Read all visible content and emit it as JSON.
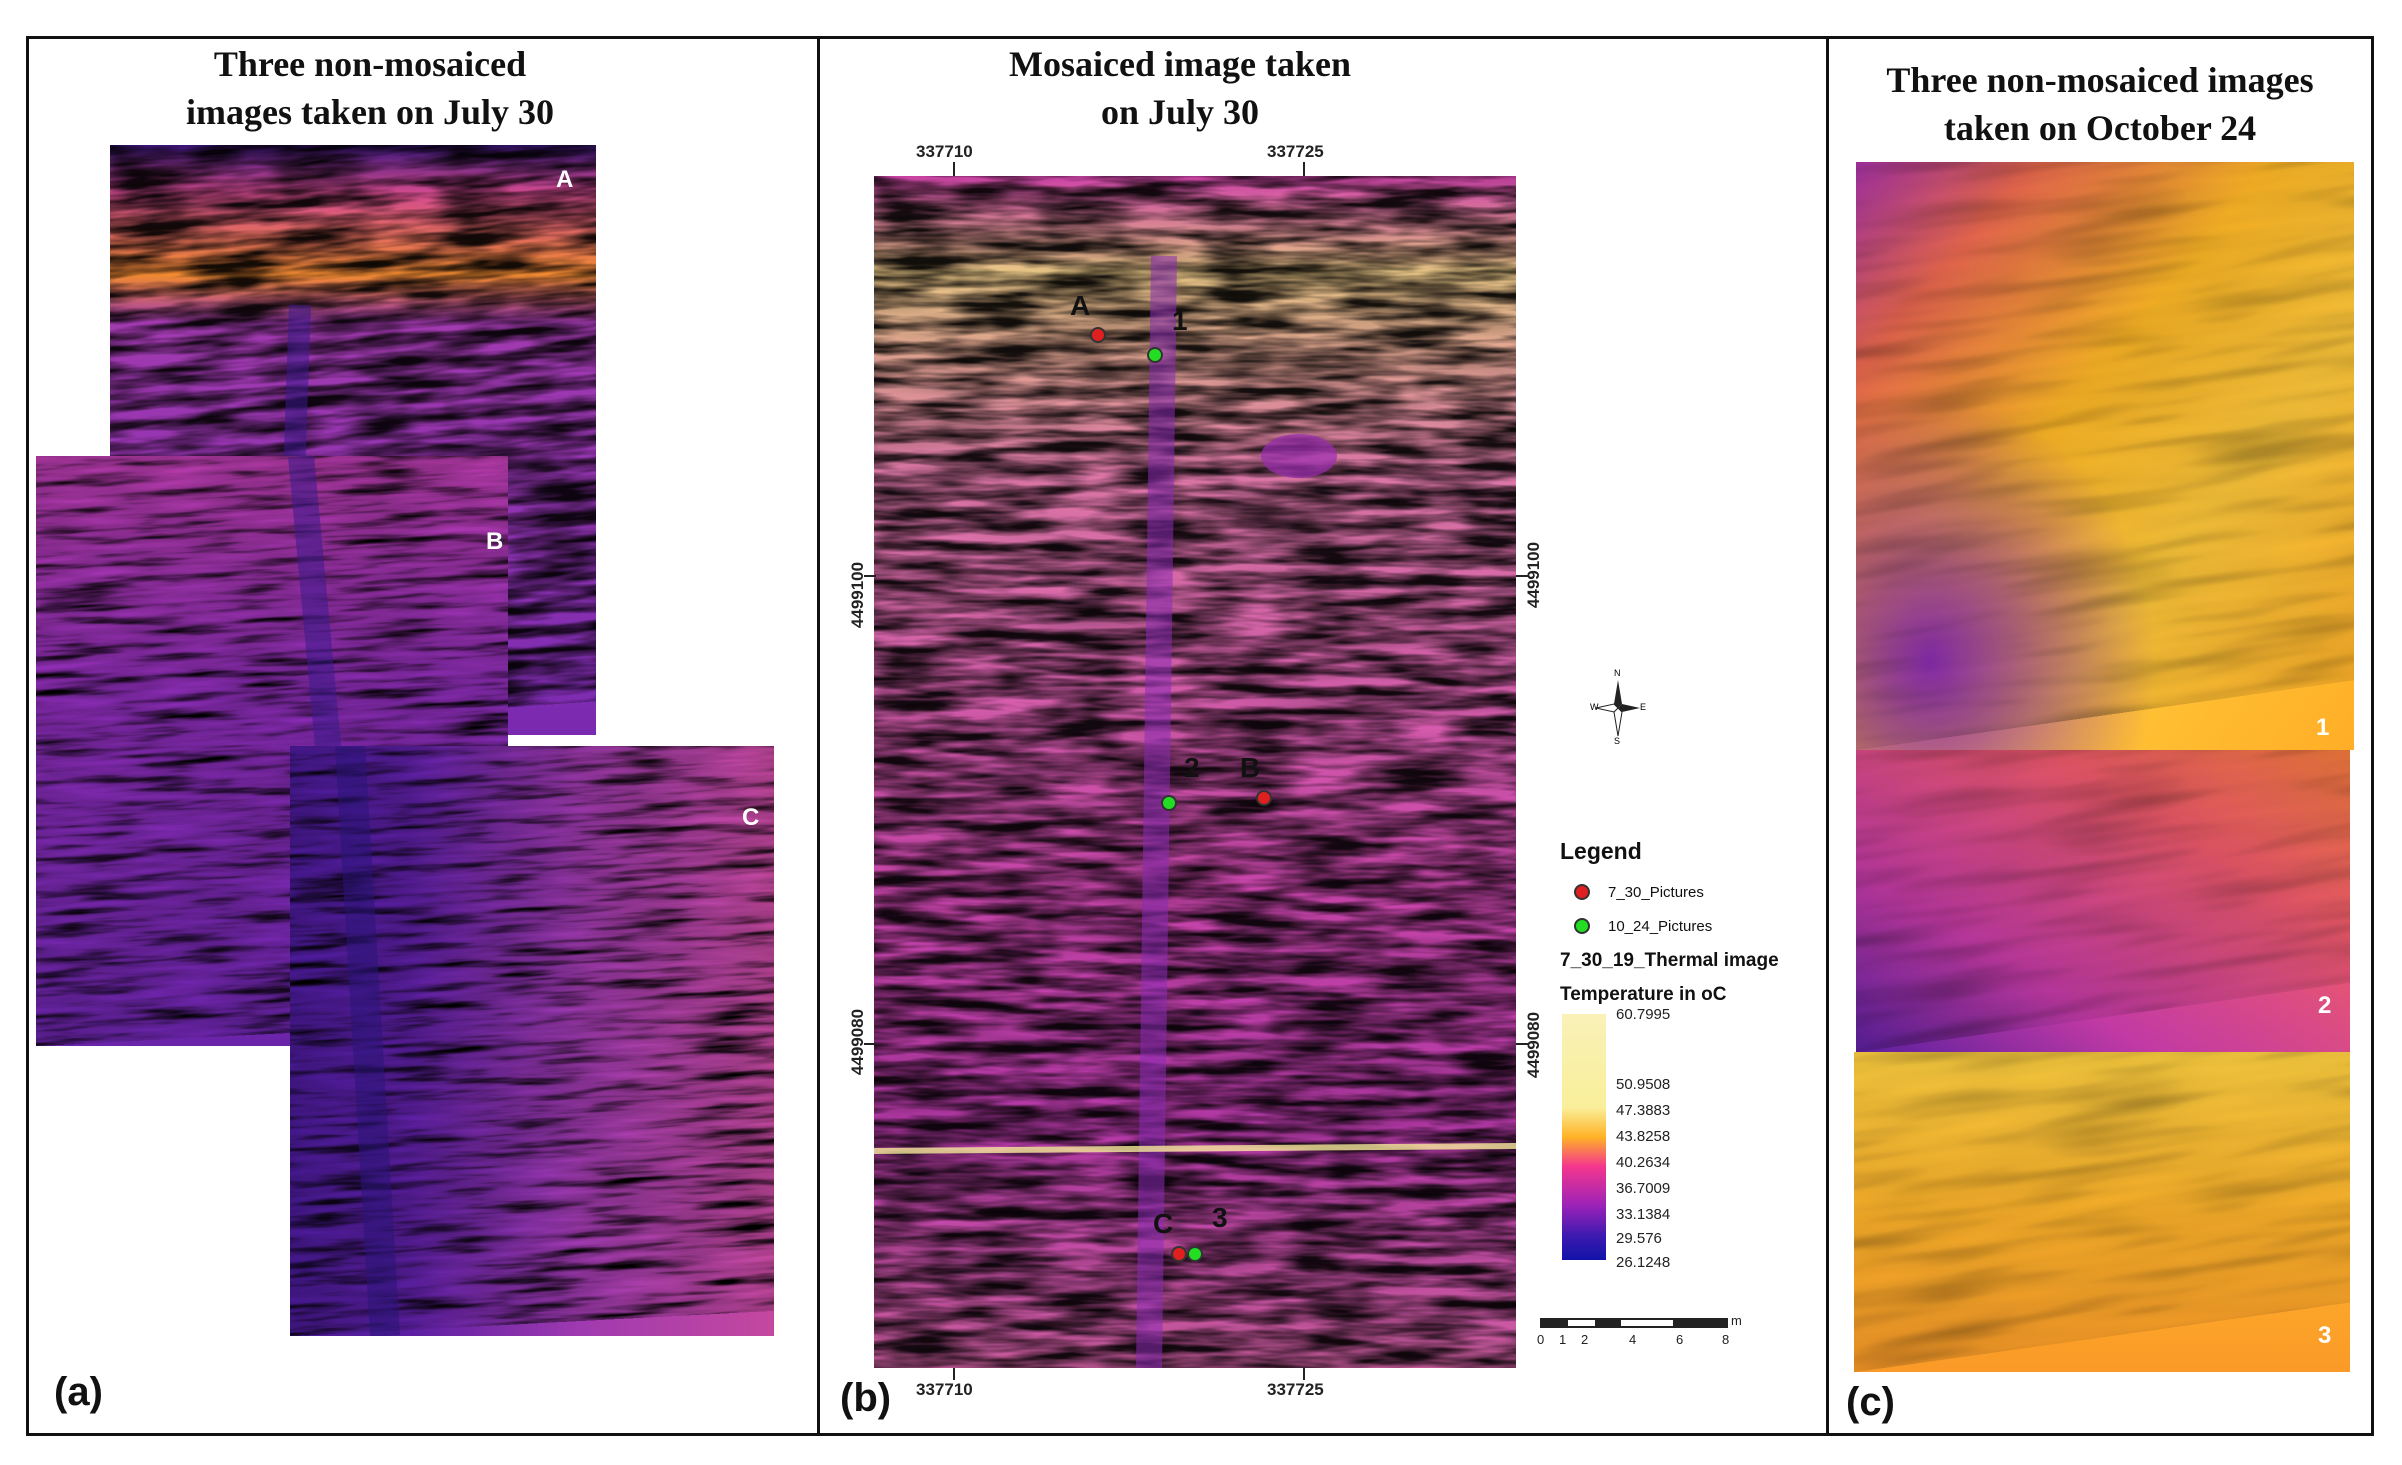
{
  "panels": {
    "a": {
      "title_line1": "Three non-mosaiced",
      "title_line2": "images taken on July 30",
      "label": "(a)",
      "tiles": [
        "A",
        "B",
        "C"
      ]
    },
    "b": {
      "title_line1": "Mosaiced image taken",
      "title_line2": "on July 30",
      "label": "(b)",
      "x_coords": [
        "337710",
        "337725",
        "337710",
        "337725"
      ],
      "y_coords": [
        "4499100",
        "4499080",
        "4499100",
        "4499080"
      ],
      "points": [
        "A",
        "1",
        "2",
        "B",
        "C",
        "3"
      ]
    },
    "c": {
      "title_line1": "Three non-mosaiced images",
      "title_line2": "taken on October 24",
      "label": "(c)",
      "tiles": [
        "1",
        "2",
        "3"
      ]
    }
  },
  "compass": {
    "n": "N",
    "s": "S",
    "e": "E",
    "w": "W"
  },
  "legend": {
    "title": "Legend",
    "item_red": "7_30_Pictures",
    "item_green": "10_24_Pictures",
    "layer": "7_30_19_Thermal image",
    "units": "Temperature in oC",
    "ramp_values": [
      "60.7995",
      "50.9508",
      "47.3883",
      "43.8258",
      "40.2634",
      "36.7009",
      "33.1384",
      "29.576",
      "26.1248"
    ],
    "scale_ticks": [
      "0",
      "1",
      "2",
      "4",
      "6",
      "8"
    ],
    "scale_unit": "m"
  },
  "colors": {
    "red_marker": "#e02020",
    "green_marker": "#22dd22",
    "hot": "#f8ec9c",
    "warm": "#ff9a1c",
    "mid": "#e83aa8",
    "cool": "#6a1fa6",
    "cold": "#1a1a9a"
  }
}
